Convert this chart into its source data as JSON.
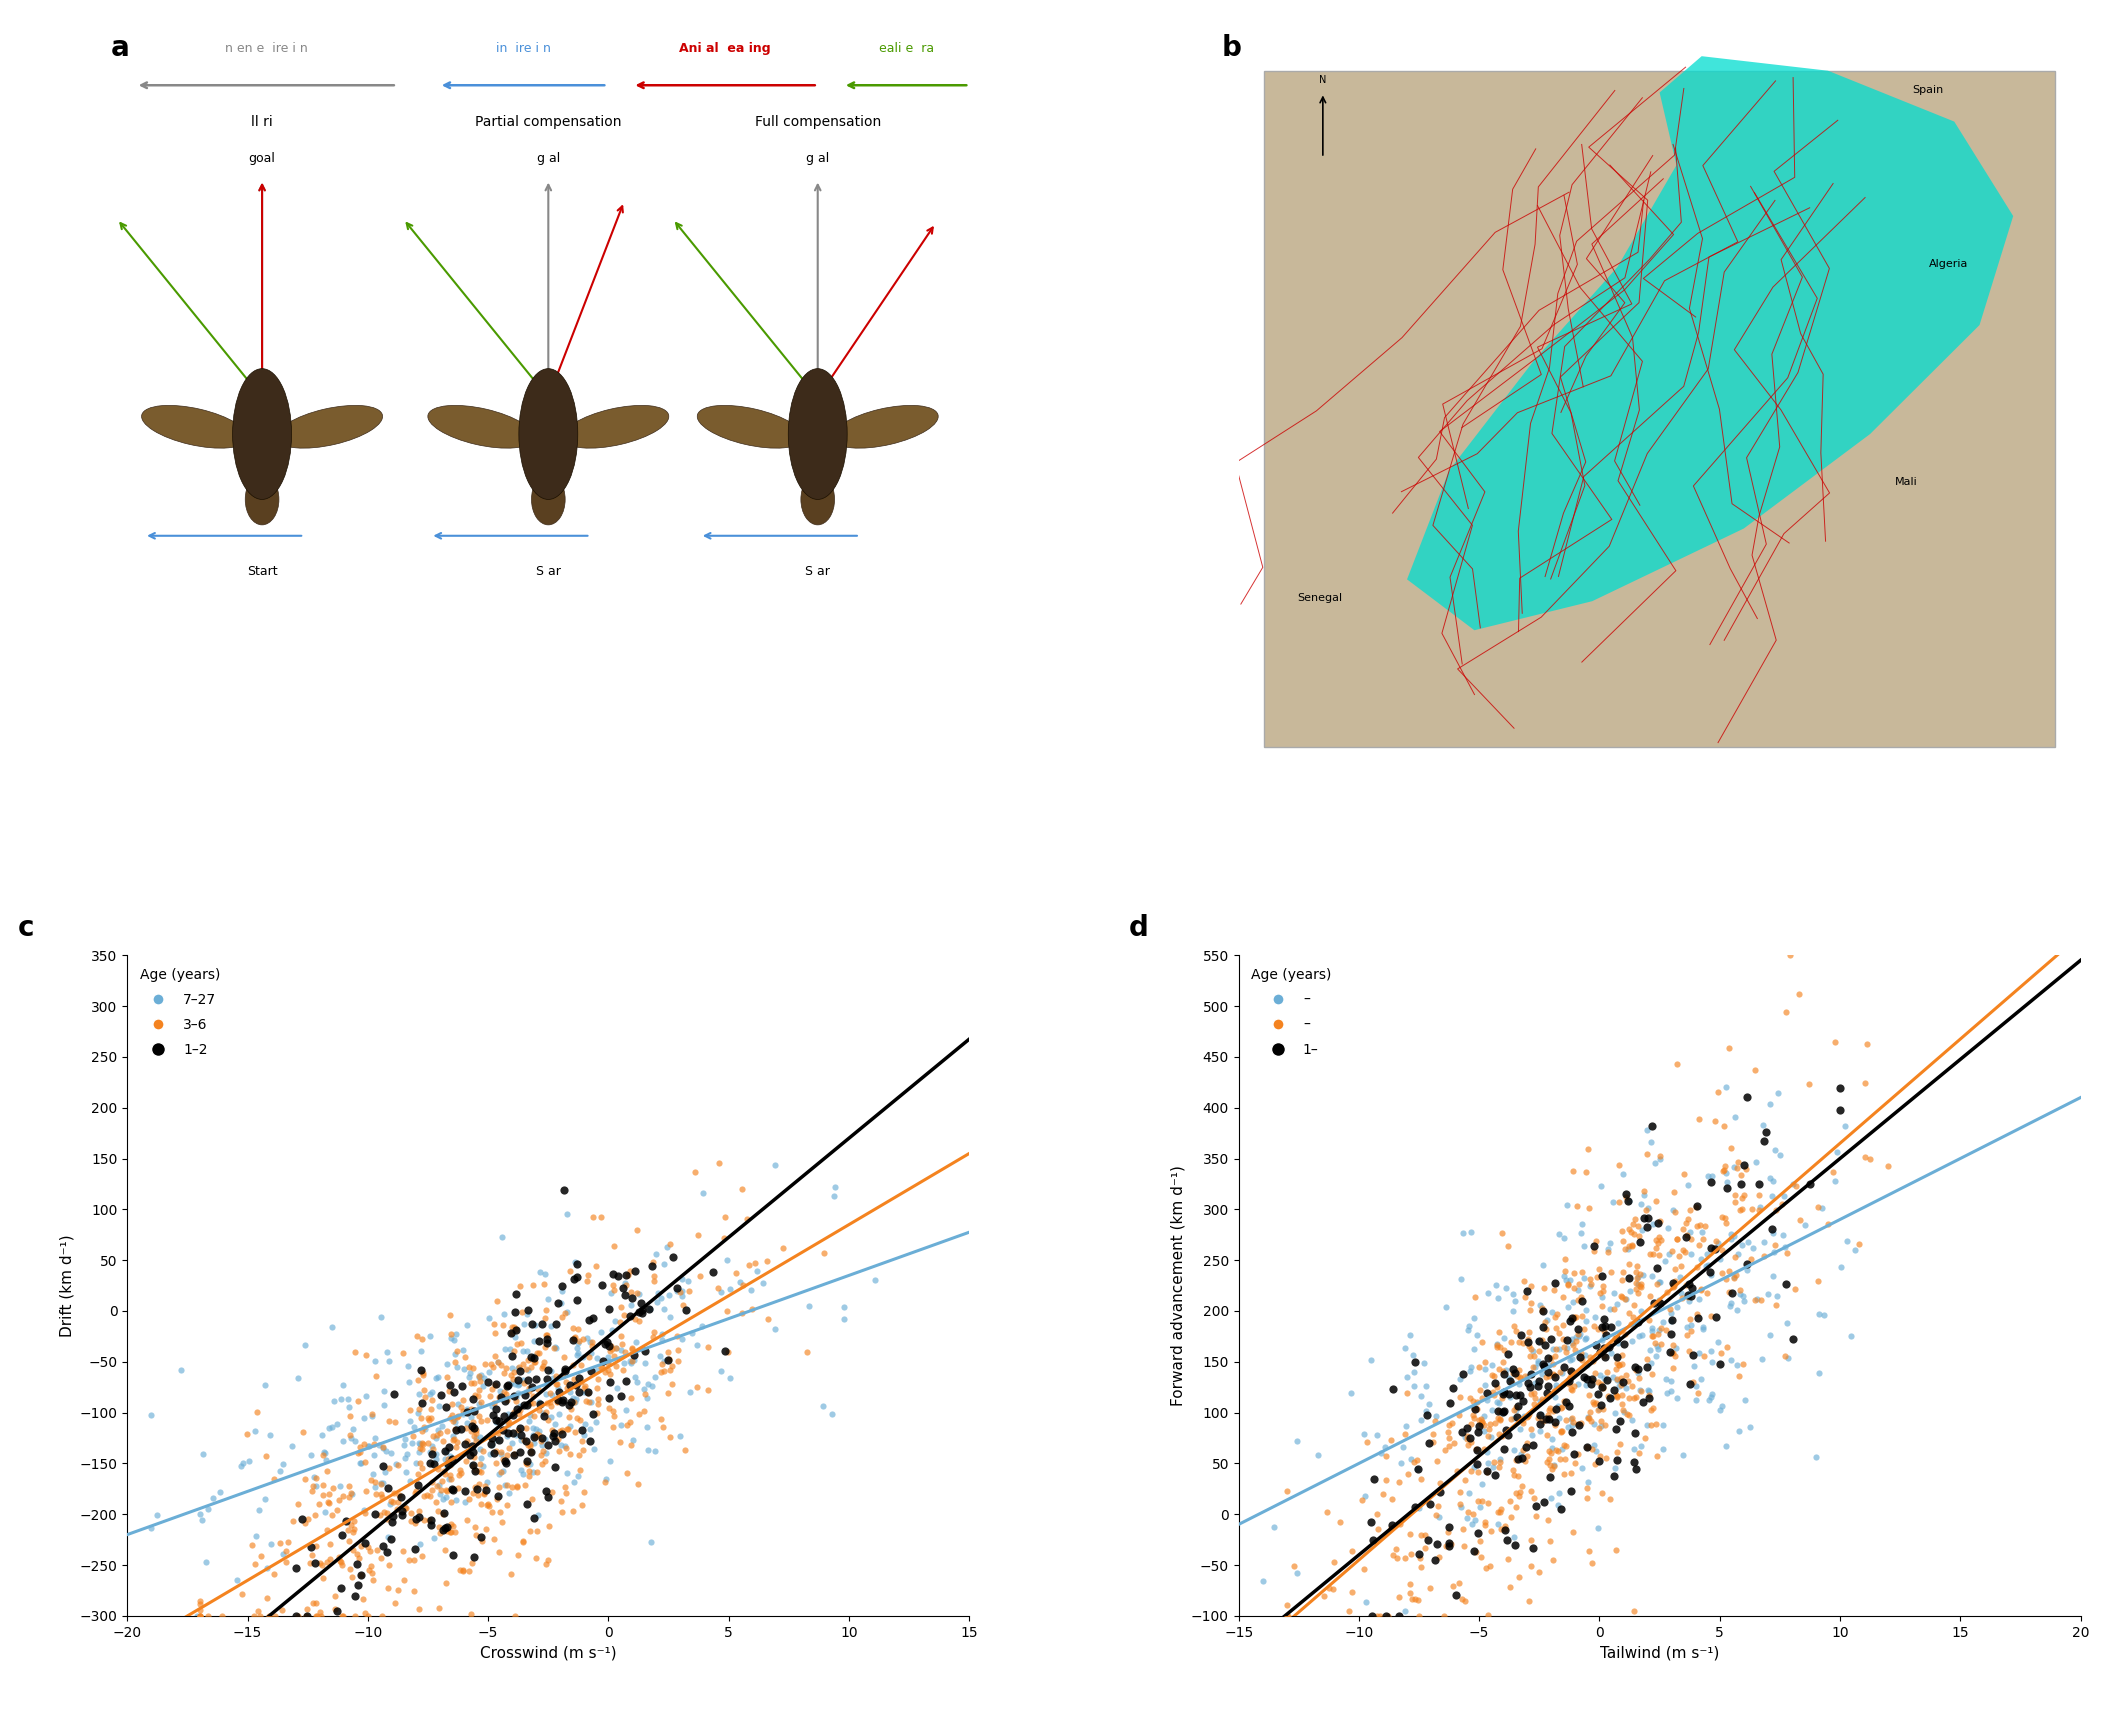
{
  "panel_c": {
    "xlabel": "Crosswind (m s⁻¹)",
    "ylabel": "Drift (km d⁻¹)",
    "xlim": [
      -20,
      15
    ],
    "ylim": [
      -300,
      350
    ],
    "xticks": [
      -20,
      -15,
      -10,
      -5,
      0,
      5,
      10,
      15
    ],
    "yticks": [
      -300,
      -250,
      -200,
      -150,
      -100,
      -50,
      0,
      50,
      100,
      150,
      200,
      250,
      300,
      350
    ],
    "colors": {
      "blue": "#6baed6",
      "orange": "#f4831f",
      "black": "#000000"
    },
    "blue_slope": 8.5,
    "blue_intercept": -50,
    "orange_slope": 14.0,
    "orange_intercept": -55,
    "black_slope": 19.5,
    "black_intercept": -25,
    "n_blue": 350,
    "n_orange": 600,
    "n_black": 200
  },
  "panel_d": {
    "xlabel": "Tailwind (m s⁻¹)",
    "ylabel": "Forward advancement (km d⁻¹)",
    "xlim": [
      -15,
      20
    ],
    "ylim": [
      -100,
      550
    ],
    "xticks": [
      -15,
      -10,
      -5,
      0,
      5,
      10,
      15,
      20
    ],
    "yticks": [
      -100,
      -50,
      0,
      50,
      100,
      150,
      200,
      250,
      300,
      350,
      400,
      450,
      500,
      550
    ],
    "colors": {
      "blue": "#6baed6",
      "orange": "#f4831f",
      "black": "#000000"
    },
    "blue_slope": 12.0,
    "blue_intercept": 170,
    "orange_slope": 20.5,
    "orange_intercept": 160,
    "black_slope": 19.5,
    "black_intercept": 155,
    "n_blue": 350,
    "n_orange": 600,
    "n_black": 200
  },
  "panel_a": {
    "gray_col": "#888888",
    "blue_col": "#4a90d9",
    "red_col": "#cc0000",
    "green_col": "#4a9a00",
    "header_gray": "n en e  ire i n",
    "header_blue": "in  ire i n",
    "header_red": "Ani al  ea ing",
    "header_green": "eali e  ra",
    "titles": [
      "ll ri",
      "Partial compensation",
      "Full compensation"
    ],
    "subtitles": [
      "goal",
      "g al",
      "g al"
    ],
    "start_labels": [
      "Start",
      "S ar",
      "S ar"
    ]
  }
}
